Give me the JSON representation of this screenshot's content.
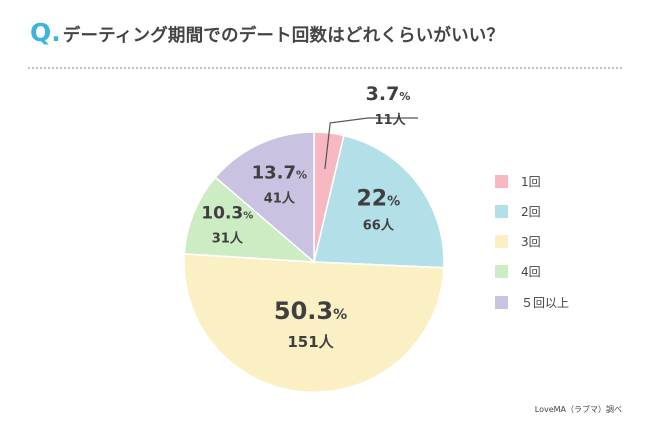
{
  "title": {
    "q_mark": "Q.",
    "text": "デーティング期間でのデート回数はどれくらいがいい？"
  },
  "legend": [
    {
      "label": "1回",
      "color": "#f7b8c2"
    },
    {
      "label": "2回",
      "color": "#b3e0e8"
    },
    {
      "label": "3回",
      "color": "#faf0c3"
    },
    {
      "label": "4回",
      "color": "#ccecc4"
    },
    {
      "label": "５回以上",
      "color": "#c9c3e1"
    }
  ],
  "source": "LoveMA（ラブマ）調べ",
  "chart_data": {
    "type": "pie",
    "categories": [
      "1回",
      "2回",
      "3回",
      "4回",
      "５回以上"
    ],
    "values": [
      3.7,
      22,
      50.3,
      10.3,
      13.7
    ],
    "counts": [
      11,
      66,
      151,
      31,
      41
    ],
    "percent_labels": [
      "3.7",
      "22",
      "50.3",
      "10.3",
      "13.7"
    ],
    "percent_unit": "%",
    "count_labels": [
      "11人",
      "66人",
      "151人",
      "31人",
      "41人"
    ],
    "colors": [
      "#f7b8c2",
      "#b3e0e8",
      "#faf0c3",
      "#ccecc4",
      "#c9c3e1"
    ],
    "legend_position": "right"
  }
}
